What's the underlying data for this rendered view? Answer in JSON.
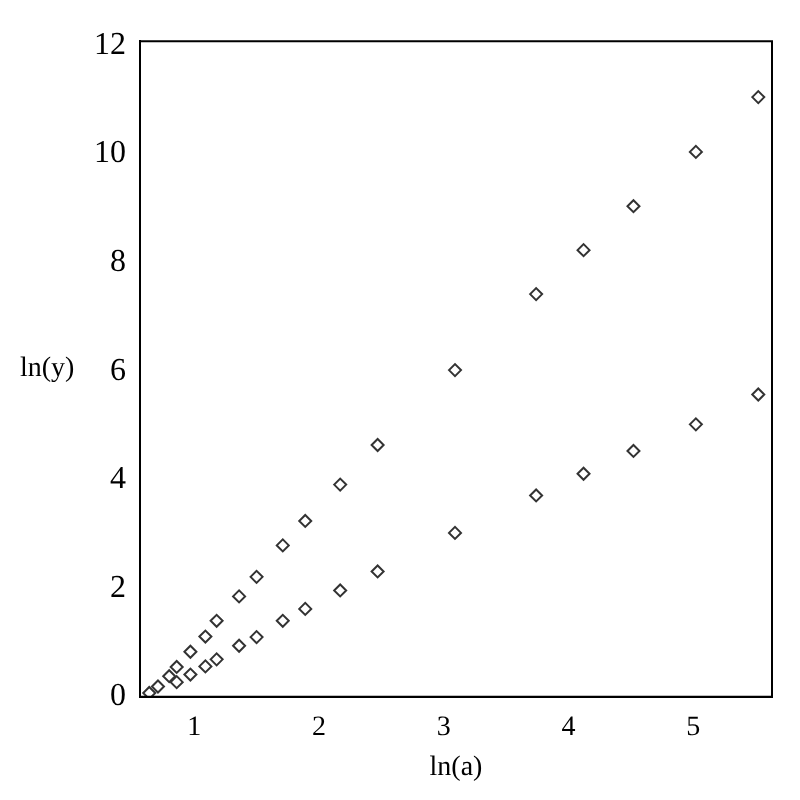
{
  "chart_data": {
    "type": "scatter",
    "xlabel": "ln(a)",
    "ylabel": "ln(y)",
    "xlim": [
      0.566,
      5.63
    ],
    "ylim": [
      0,
      12.08
    ],
    "xticks": [
      1,
      2,
      3,
      4,
      5
    ],
    "yticks": [
      0,
      2,
      4,
      6,
      8,
      10,
      12
    ],
    "grid": false,
    "marker": "diamond",
    "series": [
      {
        "color": "#333333",
        "x": [
          0.64,
          0.71,
          0.8,
          0.86,
          0.97,
          1.09,
          1.18,
          1.36,
          1.5,
          1.71,
          1.89,
          2.17,
          2.47,
          3.09,
          3.74,
          4.12,
          4.52,
          5.02,
          5.52
        ],
        "values": [
          0.07,
          0.19,
          0.38,
          0.55,
          0.83,
          1.11,
          1.4,
          1.85,
          2.21,
          2.79,
          3.24,
          3.91,
          4.64,
          6.02,
          7.42,
          8.23,
          9.04,
          10.04,
          11.05
        ]
      },
      {
        "color": "#333333",
        "x": [
          0.86,
          0.97,
          1.09,
          1.18,
          1.36,
          1.5,
          1.71,
          1.89,
          2.17,
          2.47,
          3.09,
          3.74,
          4.12,
          4.52,
          5.02,
          5.52
        ],
        "values": [
          0.27,
          0.41,
          0.56,
          0.69,
          0.94,
          1.1,
          1.4,
          1.62,
          1.96,
          2.31,
          3.02,
          3.71,
          4.11,
          4.53,
          5.02,
          5.57
        ]
      }
    ]
  }
}
